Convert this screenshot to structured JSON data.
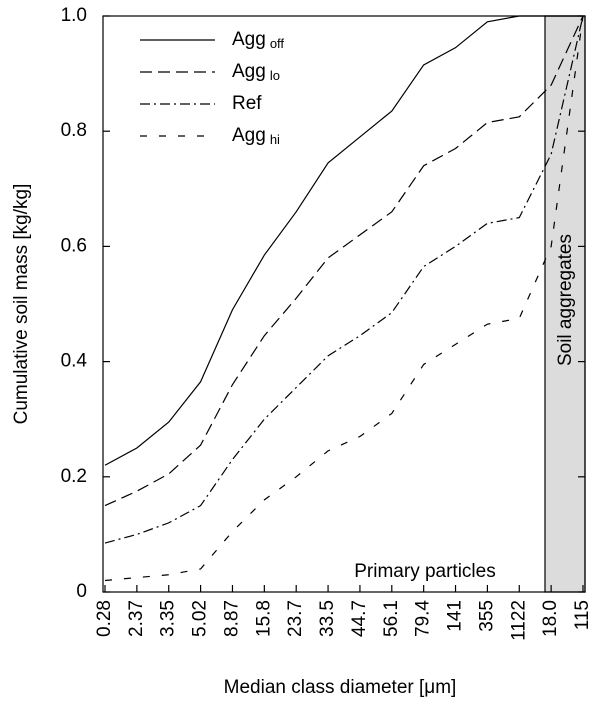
{
  "chart_data": {
    "type": "line",
    "xlabel": "Median class diameter [μm]",
    "ylabel": "Cumulative soil mass [kg/kg]",
    "categories": [
      "0.28",
      "2.37",
      "3.35",
      "5.02",
      "8.87",
      "15.8",
      "23.7",
      "33.5",
      "44.7",
      "56.1",
      "79.4",
      "141",
      "355",
      "1122",
      "18.0",
      "115"
    ],
    "ylim": [
      0,
      1
    ],
    "yticks": [
      0,
      0.2,
      0.4,
      0.6,
      0.8,
      {
        "value": 1,
        "label": "1.0"
      }
    ],
    "annotations": [
      "Primary particles",
      "Soil aggregates"
    ],
    "series": [
      {
        "name": "Agg",
        "name_sub": "off",
        "color": "#000000",
        "values": [
          0.22,
          0.25,
          0.295,
          0.365,
          0.49,
          0.585,
          0.66,
          0.745,
          0.79,
          0.835,
          0.915,
          0.945,
          0.99,
          1.0,
          1.0,
          1.0
        ]
      },
      {
        "name": "Agg",
        "name_sub": "lo",
        "color": "#000000",
        "values": [
          0.15,
          0.175,
          0.205,
          0.255,
          0.36,
          0.445,
          0.51,
          0.58,
          0.62,
          0.66,
          0.74,
          0.77,
          0.815,
          0.825,
          0.88,
          1.0
        ]
      },
      {
        "name": "Ref",
        "color": "#000000",
        "values": [
          0.085,
          0.1,
          0.12,
          0.15,
          0.23,
          0.3,
          0.355,
          0.41,
          0.445,
          0.485,
          0.565,
          0.6,
          0.64,
          0.65,
          0.76,
          1.0
        ]
      },
      {
        "name": "Agg",
        "name_sub": "hi",
        "color": "#000000",
        "values": [
          0.02,
          0.025,
          0.03,
          0.04,
          0.105,
          0.16,
          0.2,
          0.245,
          0.27,
          0.31,
          0.395,
          0.43,
          0.465,
          0.475,
          0.6,
          1.0
        ]
      }
    ]
  }
}
